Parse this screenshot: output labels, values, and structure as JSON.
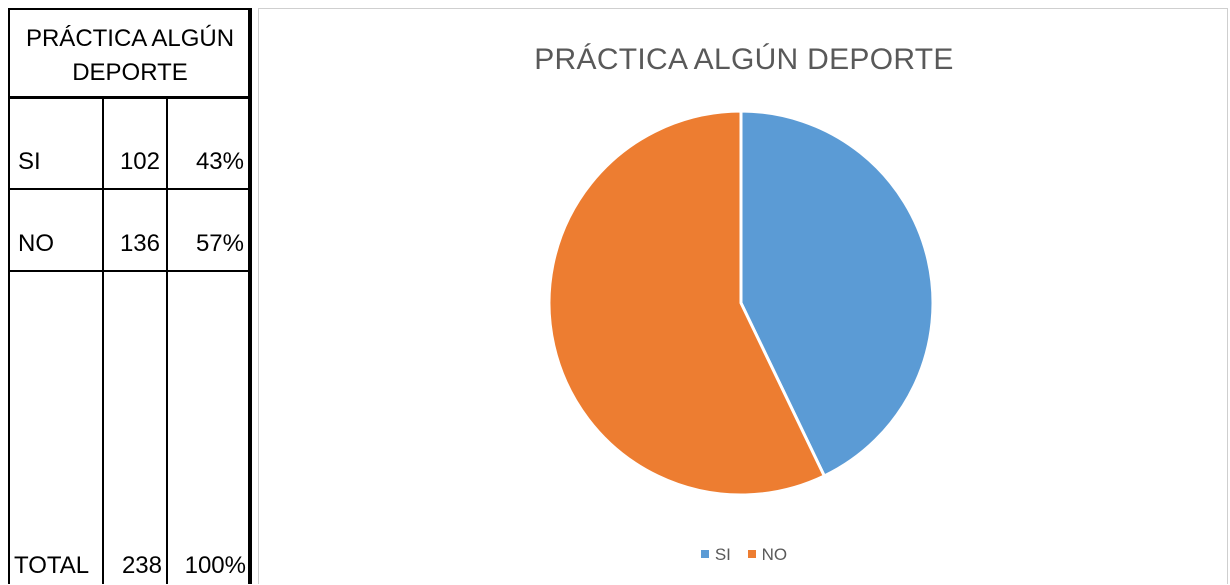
{
  "table": {
    "header": "PRÁCTICA ALGÚN DEPORTE",
    "rows": [
      {
        "label": "SI",
        "count": "102",
        "percent": "43%"
      },
      {
        "label": "NO",
        "count": "136",
        "percent": "57%"
      },
      {
        "label": "TOTAL",
        "count": "238",
        "percent": "100%"
      }
    ]
  },
  "colors": {
    "si": "#5b9bd5",
    "no": "#ed7d31"
  },
  "chart_data": {
    "type": "pie",
    "title": "PRÁCTICA ALGÚN DEPORTE",
    "categories": [
      "SI",
      "NO"
    ],
    "values": [
      102,
      136
    ],
    "colors": [
      "#5b9bd5",
      "#ed7d31"
    ],
    "legend": "bottom"
  }
}
